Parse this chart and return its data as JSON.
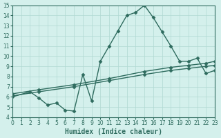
{
  "line1_x": [
    0,
    2,
    3,
    4,
    5,
    6,
    7,
    8,
    9,
    10,
    11,
    12,
    13,
    14,
    15,
    16,
    17,
    18,
    19,
    20,
    21,
    22,
    23
  ],
  "line1_y": [
    6.0,
    6.5,
    5.9,
    5.2,
    5.4,
    4.7,
    4.6,
    8.2,
    5.6,
    9.5,
    11.0,
    12.5,
    14.0,
    14.3,
    15.0,
    13.8,
    12.4,
    11.0,
    9.5,
    9.5,
    9.8,
    8.3,
    8.6
  ],
  "line2_x": [
    0,
    3,
    7,
    11,
    15,
    18,
    20,
    22,
    23
  ],
  "line2_y": [
    6.1,
    6.5,
    7.0,
    7.6,
    8.2,
    8.6,
    8.8,
    9.0,
    9.1
  ],
  "line3_x": [
    0,
    3,
    7,
    11,
    15,
    18,
    20,
    22,
    23
  ],
  "line3_y": [
    6.3,
    6.7,
    7.2,
    7.8,
    8.5,
    8.9,
    9.1,
    9.3,
    9.5
  ],
  "line_color": "#2e6b5e",
  "bg_color": "#d4f0ec",
  "grid_color": "#b0d9d2",
  "xlabel": "Humidex (Indice chaleur)",
  "xlim": [
    0,
    23
  ],
  "ylim": [
    4,
    15
  ],
  "xticks": [
    0,
    1,
    2,
    3,
    4,
    5,
    6,
    7,
    8,
    9,
    10,
    11,
    12,
    13,
    14,
    15,
    16,
    17,
    18,
    19,
    20,
    21,
    22,
    23
  ],
  "yticks": [
    4,
    5,
    6,
    7,
    8,
    9,
    10,
    11,
    12,
    13,
    14,
    15
  ],
  "marker": "D",
  "markersize": 2.5,
  "linewidth": 1.0,
  "xlabel_fontsize": 7,
  "tick_fontsize": 5.5
}
